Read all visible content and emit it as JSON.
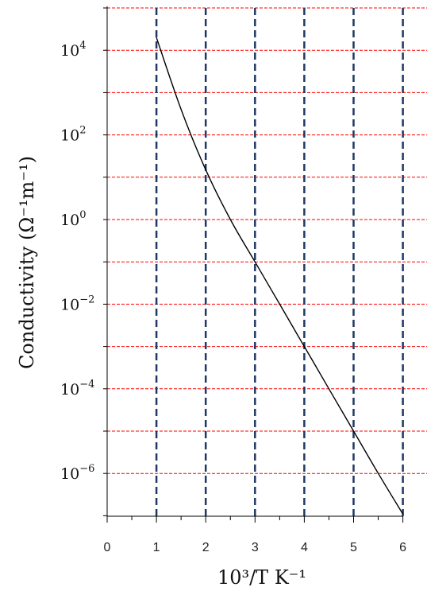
{
  "chart_data": {
    "type": "line",
    "title": "",
    "xlabel": "10³/T K⁻¹",
    "ylabel": "Conductivity (Ω⁻¹m⁻¹)",
    "xlim": [
      0,
      6
    ],
    "ylim": [
      1e-07,
      100000.0
    ],
    "yscale": "log",
    "grid": true,
    "legend": "none",
    "x_ticks": [
      0,
      1,
      2,
      3,
      4,
      5,
      6
    ],
    "x_tick_labels": [
      "0",
      "1",
      "2",
      "3",
      "4",
      "5",
      "6"
    ],
    "y_tick_values": [
      10000.0,
      100.0,
      1.0,
      0.01,
      0.0001,
      1e-06
    ],
    "y_tick_labels": [
      {
        "base": "10",
        "exp": "4"
      },
      {
        "base": "10",
        "exp": "2"
      },
      {
        "base": "10",
        "exp": "0"
      },
      {
        "base": "10",
        "exp": "−2"
      },
      {
        "base": "10",
        "exp": "−4"
      },
      {
        "base": "10",
        "exp": "−6"
      }
    ],
    "series": [
      {
        "x": [
          1.0,
          1.5,
          2.0,
          2.5,
          3.0,
          3.5,
          4.0,
          4.5,
          5.0,
          5.5,
          6.0
        ],
        "y": [
          20000,
          400,
          15,
          1.0,
          0.1,
          0.01,
          0.001,
          0.0001,
          1e-05,
          1e-06,
          1.1e-07
        ]
      }
    ],
    "colors": {
      "curve": "#000000",
      "vertical_grid": "#1f3864",
      "horizontal_grid": "#ff0000",
      "axis": "#000000"
    }
  }
}
